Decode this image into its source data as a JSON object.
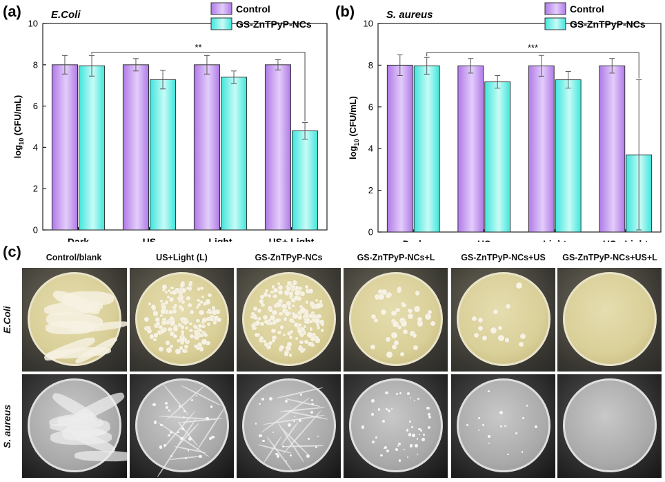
{
  "panels": {
    "a": {
      "letter": "(a)",
      "title": "E.Coli"
    },
    "b": {
      "letter": "(b)",
      "title": "S. aureus"
    },
    "c": {
      "letter": "(c)",
      "columns": [
        "Control/blank",
        "US+Light (L)",
        "GS-ZnTPyP-NCs",
        "GS-ZnTPyP-NCs+L",
        "GS-ZnTPyP-NCs+US",
        "GS-ZnTPyP-NCs+US+L"
      ],
      "rows": [
        "E.Coli",
        "S. aureus"
      ]
    }
  },
  "colors": {
    "control": "#b07ae8",
    "control_light": "#e3cdfa",
    "treated": "#3fe6dc",
    "treated_light": "#c8fbf7"
  },
  "chart_data": [
    {
      "type": "bar",
      "title": "E.Coli",
      "categories": [
        "Dark",
        "US",
        "Light",
        "US+ Light"
      ],
      "series": [
        {
          "name": "Control",
          "values": [
            8.0,
            8.0,
            8.0,
            8.0
          ],
          "errors": [
            0.45,
            0.3,
            0.45,
            0.25
          ]
        },
        {
          "name": "GS-ZnTPyP-NCs",
          "values": [
            7.95,
            7.28,
            7.4,
            4.8
          ],
          "errors": [
            0.5,
            0.45,
            0.3,
            0.4
          ]
        }
      ],
      "ylabel_main": "log",
      "ylabel_sub": "10",
      "ylabel_rest": " (CFU/mL)",
      "ylim": [
        0,
        10
      ],
      "yticks": [
        0,
        2,
        4,
        6,
        8,
        10
      ],
      "significance": {
        "label": "**",
        "from": 0,
        "to": 3
      },
      "legend": "top-right",
      "grid": false
    },
    {
      "type": "bar",
      "title": "S. aureus",
      "categories": [
        "Dark",
        "US",
        "Light",
        "US+ Light"
      ],
      "series": [
        {
          "name": "Control",
          "values": [
            8.0,
            7.97,
            7.97,
            7.97
          ],
          "errors": [
            0.5,
            0.35,
            0.5,
            0.35
          ]
        },
        {
          "name": "GS-ZnTPyP-NCs",
          "values": [
            7.97,
            7.2,
            7.3,
            3.7
          ],
          "errors": [
            0.4,
            0.3,
            0.4,
            3.6
          ]
        }
      ],
      "ylabel_main": "log",
      "ylabel_sub": "10",
      "ylabel_rest": " (CFU/mL)",
      "ylim": [
        0,
        10
      ],
      "yticks": [
        0,
        2,
        4,
        6,
        8,
        10
      ],
      "significance": {
        "label": "***",
        "from": 0,
        "to": 3
      },
      "legend": "top-right",
      "grid": false
    }
  ]
}
